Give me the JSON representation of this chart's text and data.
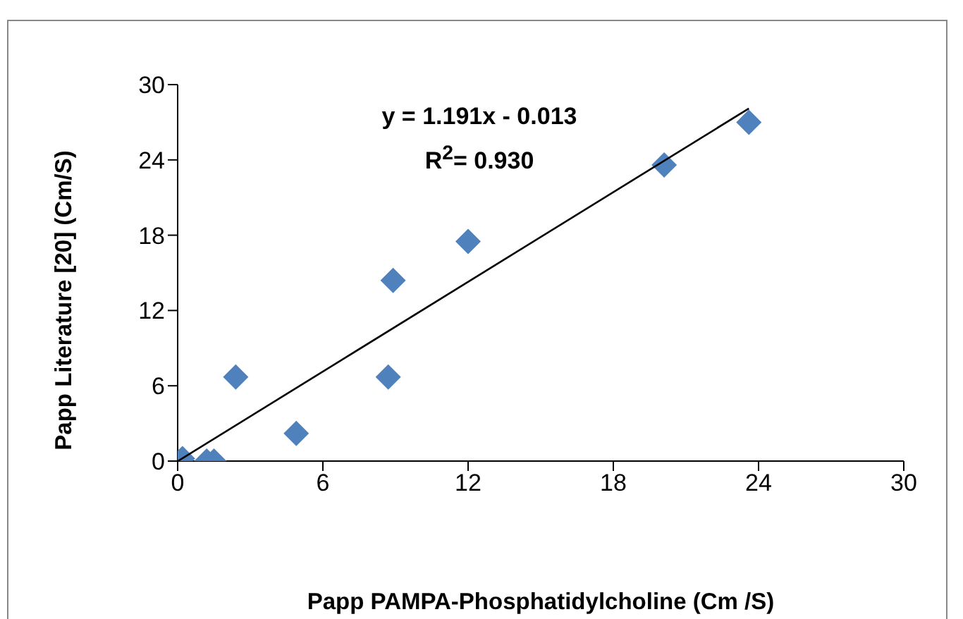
{
  "chart_data": {
    "type": "scatter",
    "xlabel": "Papp PAMPA-Phosphatidylcholine (Cm /S)",
    "ylabel": "Papp  Literature [20] (Cm/S)",
    "annotations": [
      "y = 1.191x - 0.013",
      "R$^{2}$= 0.930"
    ],
    "series": [
      {
        "type": "scatter",
        "color": "#4f81bd",
        "marker": "diamond",
        "x": [
          0.2,
          1.2,
          1.5,
          2.4,
          4.9,
          8.7,
          8.9,
          12.0,
          20.1,
          23.6
        ],
        "values": [
          0.2,
          0,
          0,
          6.7,
          2.2,
          6.7,
          14.4,
          17.5,
          23.6,
          27.0
        ]
      },
      {
        "type": "line",
        "color": "#000000",
        "marker": "none",
        "x": [
          0.011,
          23.6
        ],
        "values": [
          0,
          28.1
        ]
      }
    ],
    "xlim": [
      0,
      30
    ],
    "xticks": [
      0,
      6,
      12,
      18,
      24,
      30
    ],
    "ylim": [
      0,
      30
    ],
    "yticks": [
      0,
      6,
      12,
      18,
      24,
      30
    ]
  }
}
